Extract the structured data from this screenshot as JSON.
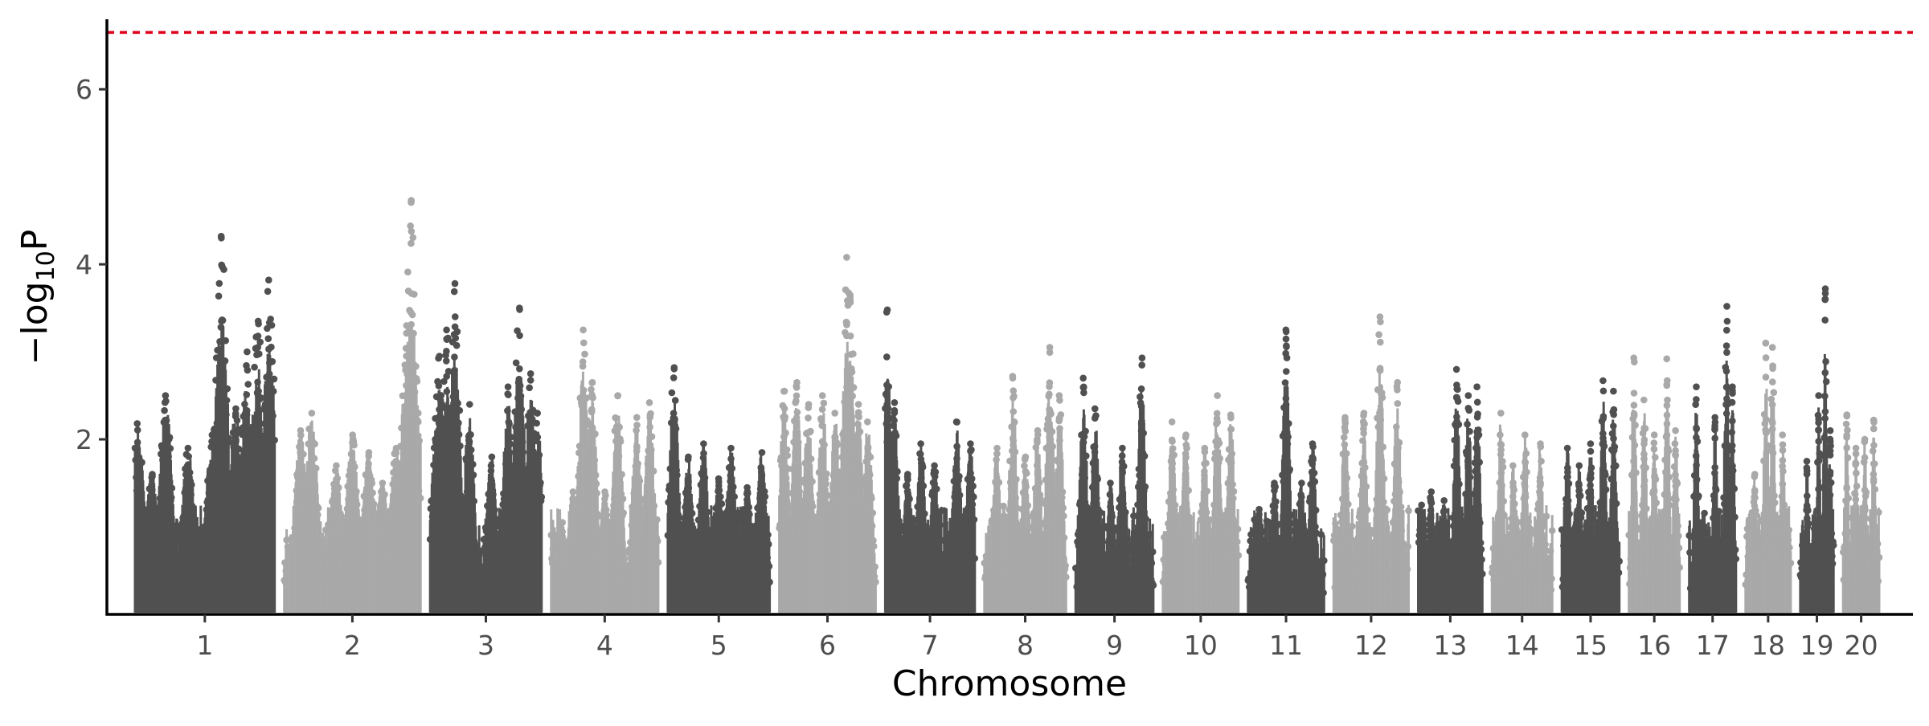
{
  "chart_data": {
    "type": "scatter",
    "title": "",
    "xlabel": "Chromosome",
    "ylabel": {
      "prefix": "−log",
      "subscript": "10",
      "suffix": "P"
    },
    "ylim": [
      0,
      6.8
    ],
    "y_ticks": [
      2,
      4,
      6
    ],
    "grid": false,
    "legend": "none",
    "significance_threshold": 6.65,
    "colors": {
      "odd": "#505050",
      "even": "#a9a9a9",
      "threshold": "#e0001b",
      "axis": "#000000"
    },
    "chromosomes": [
      {
        "label": "1",
        "peaks": [
          [
            0.02,
            2.18
          ],
          [
            0.12,
            1.6
          ],
          [
            0.22,
            2.5
          ],
          [
            0.38,
            1.9
          ],
          [
            0.55,
            2.05
          ],
          [
            0.72,
            2.35
          ],
          [
            0.8,
            3.0
          ],
          [
            0.88,
            3.35
          ],
          [
            0.96,
            3.82
          ],
          [
            0.62,
            4.32
          ]
        ]
      },
      {
        "label": "2",
        "peaks": [
          [
            0.12,
            2.1
          ],
          [
            0.2,
            2.3
          ],
          [
            0.38,
            1.7
          ],
          [
            0.5,
            2.05
          ],
          [
            0.62,
            1.85
          ],
          [
            0.72,
            1.5
          ],
          [
            0.82,
            1.9
          ],
          [
            0.9,
            3.3
          ],
          [
            0.93,
            4.73
          ],
          [
            0.98,
            2.3
          ]
        ]
      },
      {
        "label": "3",
        "peaks": [
          [
            0.05,
            2.0
          ],
          [
            0.08,
            2.95
          ],
          [
            0.15,
            3.25
          ],
          [
            0.22,
            3.78
          ],
          [
            0.35,
            2.4
          ],
          [
            0.55,
            1.8
          ],
          [
            0.7,
            2.6
          ],
          [
            0.8,
            3.5
          ],
          [
            0.9,
            2.75
          ],
          [
            0.96,
            2.3
          ]
        ]
      },
      {
        "label": "4",
        "peaks": [
          [
            0.1,
            1.05
          ],
          [
            0.2,
            1.4
          ],
          [
            0.3,
            3.25
          ],
          [
            0.38,
            2.65
          ],
          [
            0.5,
            1.4
          ],
          [
            0.62,
            2.5
          ],
          [
            0.8,
            2.25
          ],
          [
            0.92,
            2.42
          ]
        ]
      },
      {
        "label": "5",
        "peaks": [
          [
            0.06,
            2.82
          ],
          [
            0.2,
            1.8
          ],
          [
            0.35,
            1.95
          ],
          [
            0.5,
            1.55
          ],
          [
            0.62,
            1.9
          ],
          [
            0.78,
            1.45
          ],
          [
            0.92,
            1.85
          ]
        ]
      },
      {
        "label": "6",
        "peaks": [
          [
            0.05,
            2.55
          ],
          [
            0.18,
            2.65
          ],
          [
            0.3,
            2.4
          ],
          [
            0.45,
            2.5
          ],
          [
            0.58,
            2.3
          ],
          [
            0.7,
            4.08
          ],
          [
            0.74,
            3.65
          ],
          [
            0.82,
            2.4
          ],
          [
            0.92,
            2.2
          ]
        ]
      },
      {
        "label": "7",
        "peaks": [
          [
            0.02,
            3.48
          ],
          [
            0.1,
            2.42
          ],
          [
            0.25,
            1.6
          ],
          [
            0.4,
            1.95
          ],
          [
            0.55,
            1.7
          ],
          [
            0.8,
            2.2
          ],
          [
            0.95,
            1.95
          ]
        ]
      },
      {
        "label": "8",
        "peaks": [
          [
            0.15,
            1.9
          ],
          [
            0.35,
            2.72
          ],
          [
            0.5,
            1.8
          ],
          [
            0.65,
            2.1
          ],
          [
            0.8,
            3.05
          ],
          [
            0.92,
            2.5
          ]
        ]
      },
      {
        "label": "9",
        "peaks": [
          [
            0.1,
            2.7
          ],
          [
            0.25,
            2.35
          ],
          [
            0.45,
            1.5
          ],
          [
            0.6,
            1.9
          ],
          [
            0.85,
            2.93
          ]
        ]
      },
      {
        "label": "10",
        "peaks": [
          [
            0.12,
            2.2
          ],
          [
            0.3,
            2.05
          ],
          [
            0.55,
            1.9
          ],
          [
            0.72,
            2.5
          ],
          [
            0.9,
            2.28
          ]
        ]
      },
      {
        "label": "11",
        "peaks": [
          [
            0.15,
            1.2
          ],
          [
            0.35,
            1.5
          ],
          [
            0.5,
            3.25
          ],
          [
            0.7,
            1.5
          ],
          [
            0.85,
            1.95
          ]
        ]
      },
      {
        "label": "12",
        "peaks": [
          [
            0.15,
            2.25
          ],
          [
            0.4,
            2.3
          ],
          [
            0.62,
            3.4
          ],
          [
            0.85,
            2.65
          ]
        ]
      },
      {
        "label": "13",
        "peaks": [
          [
            0.05,
            1.25
          ],
          [
            0.2,
            1.4
          ],
          [
            0.4,
            1.3
          ],
          [
            0.6,
            2.8
          ],
          [
            0.78,
            2.5
          ],
          [
            0.92,
            2.6
          ]
        ]
      },
      {
        "label": "14",
        "peaks": [
          [
            0.15,
            2.3
          ],
          [
            0.35,
            1.7
          ],
          [
            0.55,
            2.05
          ],
          [
            0.8,
            1.95
          ]
        ]
      },
      {
        "label": "15",
        "peaks": [
          [
            0.1,
            1.9
          ],
          [
            0.3,
            1.7
          ],
          [
            0.5,
            1.95
          ],
          [
            0.72,
            2.67
          ],
          [
            0.9,
            2.55
          ]
        ]
      },
      {
        "label": "16",
        "peaks": [
          [
            0.1,
            2.93
          ],
          [
            0.3,
            2.45
          ],
          [
            0.5,
            2.05
          ],
          [
            0.75,
            2.92
          ],
          [
            0.92,
            2.1
          ]
        ]
      },
      {
        "label": "17",
        "peaks": [
          [
            0.15,
            2.6
          ],
          [
            0.55,
            2.25
          ],
          [
            0.8,
            3.52
          ],
          [
            0.92,
            2.6
          ]
        ]
      },
      {
        "label": "18",
        "peaks": [
          [
            0.2,
            1.6
          ],
          [
            0.45,
            3.1
          ],
          [
            0.6,
            3.05
          ],
          [
            0.82,
            2.05
          ]
        ]
      },
      {
        "label": "19",
        "peaks": [
          [
            0.2,
            1.75
          ],
          [
            0.55,
            2.5
          ],
          [
            0.75,
            3.72
          ],
          [
            0.9,
            2.1
          ]
        ]
      },
      {
        "label": "20",
        "peaks": [
          [
            0.1,
            2.28
          ],
          [
            0.35,
            1.9
          ],
          [
            0.6,
            2.0
          ],
          [
            0.85,
            2.22
          ]
        ]
      }
    ]
  }
}
